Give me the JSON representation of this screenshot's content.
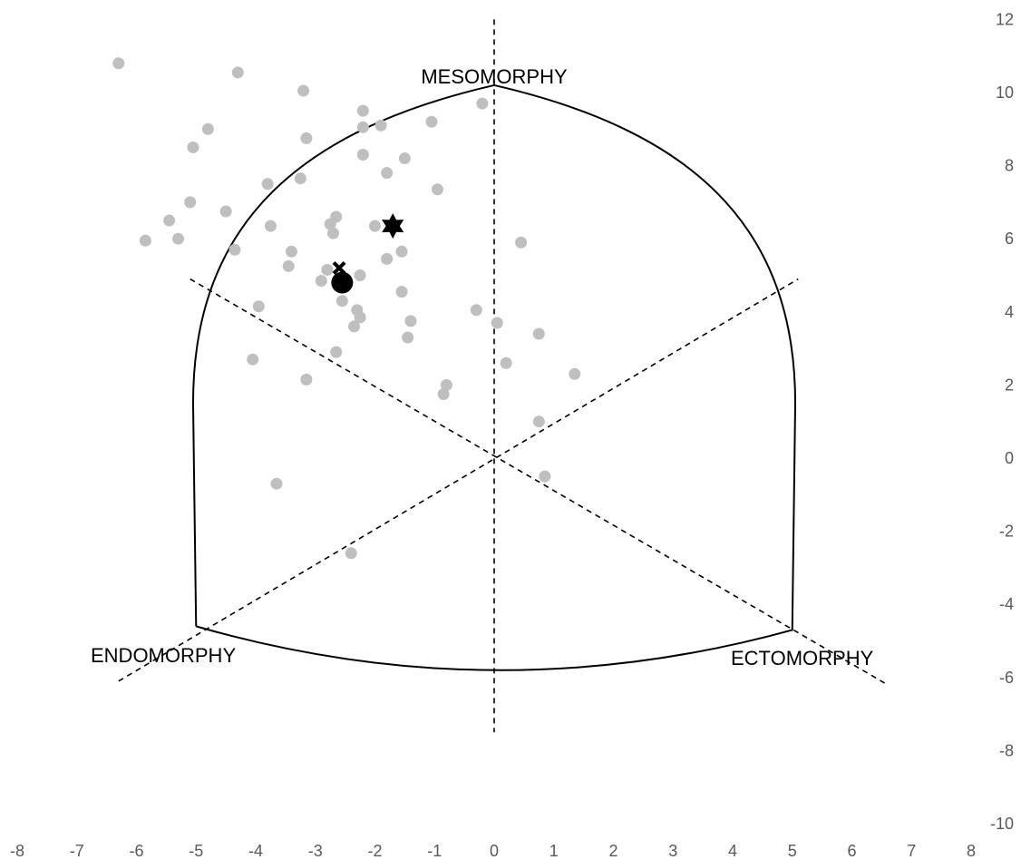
{
  "chart_data": {
    "type": "scatter",
    "title": "",
    "xlabel": "",
    "ylabel": "",
    "xlim": [
      -8,
      8
    ],
    "ylim": [
      -10,
      12
    ],
    "x_ticks": [
      "-8",
      "-7",
      "-6",
      "-5",
      "-4",
      "-3",
      "-2",
      "-1",
      "0",
      "1",
      "2",
      "3",
      "4",
      "5",
      "6",
      "7",
      "8"
    ],
    "y_ticks": [
      "12",
      "10",
      "8",
      "6",
      "4",
      "2",
      "0",
      "-2",
      "-4",
      "-6",
      "-8",
      "-10"
    ],
    "y_axis_position": "right",
    "grid": false,
    "legend": "none",
    "annotations": {
      "mesomorphy": "MESOMORPHY",
      "endomorphy": "ENDOMORPHY",
      "ectomorphy": "ECTOMORPHY"
    },
    "somatochart": {
      "outline": {
        "mesomorphy_apex": [
          0,
          10.2
        ],
        "endomorphy_apex": [
          -5,
          -4.6
        ],
        "ectomorphy_apex": [
          5,
          -4.7
        ],
        "bottom_midpoint": [
          0,
          -5.8
        ],
        "side_x": 5.05
      },
      "axes": [
        {
          "x1": 0,
          "y1": 12,
          "x2": 0,
          "y2": -7.5
        },
        {
          "x1": -5.1,
          "y1": 4.9,
          "x2": 6.6,
          "y2": -6.2
        },
        {
          "x1": -6.3,
          "y1": -6.1,
          "x2": 5.1,
          "y2": 4.9
        }
      ]
    },
    "series": [
      {
        "color": "#bfbfbf",
        "marker": "circle",
        "points": [
          [
            -6.3,
            10.8
          ],
          [
            -4.3,
            10.55
          ],
          [
            -3.2,
            10.05
          ],
          [
            -0.2,
            9.7
          ],
          [
            -2.2,
            9.5
          ],
          [
            -1.05,
            9.2
          ],
          [
            -1.9,
            9.1
          ],
          [
            -2.2,
            9.05
          ],
          [
            -4.8,
            9.0
          ],
          [
            -3.15,
            8.75
          ],
          [
            -5.05,
            8.5
          ],
          [
            -2.2,
            8.3
          ],
          [
            -1.5,
            8.2
          ],
          [
            -1.8,
            7.8
          ],
          [
            -3.25,
            7.65
          ],
          [
            -3.8,
            7.5
          ],
          [
            -0.95,
            7.35
          ],
          [
            -5.1,
            7.0
          ],
          [
            -4.5,
            6.75
          ],
          [
            -2.65,
            6.6
          ],
          [
            -5.45,
            6.5
          ],
          [
            -2.75,
            6.4
          ],
          [
            -3.75,
            6.35
          ],
          [
            -2.0,
            6.35
          ],
          [
            -2.7,
            6.15
          ],
          [
            -5.85,
            5.95
          ],
          [
            -5.3,
            6.0
          ],
          [
            0.45,
            5.9
          ],
          [
            -4.35,
            5.7
          ],
          [
            -3.4,
            5.65
          ],
          [
            -1.55,
            5.65
          ],
          [
            -1.8,
            5.45
          ],
          [
            -3.45,
            5.25
          ],
          [
            -2.8,
            5.15
          ],
          [
            -2.25,
            5.0
          ],
          [
            -2.9,
            4.85
          ],
          [
            -1.55,
            4.55
          ],
          [
            -2.55,
            4.3
          ],
          [
            -3.95,
            4.15
          ],
          [
            -0.3,
            4.05
          ],
          [
            -2.3,
            4.05
          ],
          [
            -2.25,
            3.85
          ],
          [
            -1.4,
            3.75
          ],
          [
            0.05,
            3.7
          ],
          [
            -2.35,
            3.6
          ],
          [
            0.75,
            3.4
          ],
          [
            -1.45,
            3.3
          ],
          [
            -2.65,
            2.9
          ],
          [
            -4.05,
            2.7
          ],
          [
            0.2,
            2.6
          ],
          [
            1.35,
            2.3
          ],
          [
            -3.15,
            2.15
          ],
          [
            -0.8,
            2.0
          ],
          [
            -0.85,
            1.75
          ],
          [
            0.75,
            1.0
          ],
          [
            0.85,
            -0.5
          ],
          [
            -3.65,
            -0.7
          ],
          [
            -2.4,
            -2.6
          ]
        ]
      },
      {
        "color": "#000000",
        "marker": "circle-large",
        "points": [
          [
            -2.55,
            4.8
          ]
        ]
      },
      {
        "color": "#000000",
        "marker": "cross",
        "points": [
          [
            -2.6,
            5.2
          ]
        ]
      },
      {
        "color": "#000000",
        "marker": "star",
        "points": [
          [
            -1.7,
            6.35
          ]
        ]
      }
    ]
  }
}
